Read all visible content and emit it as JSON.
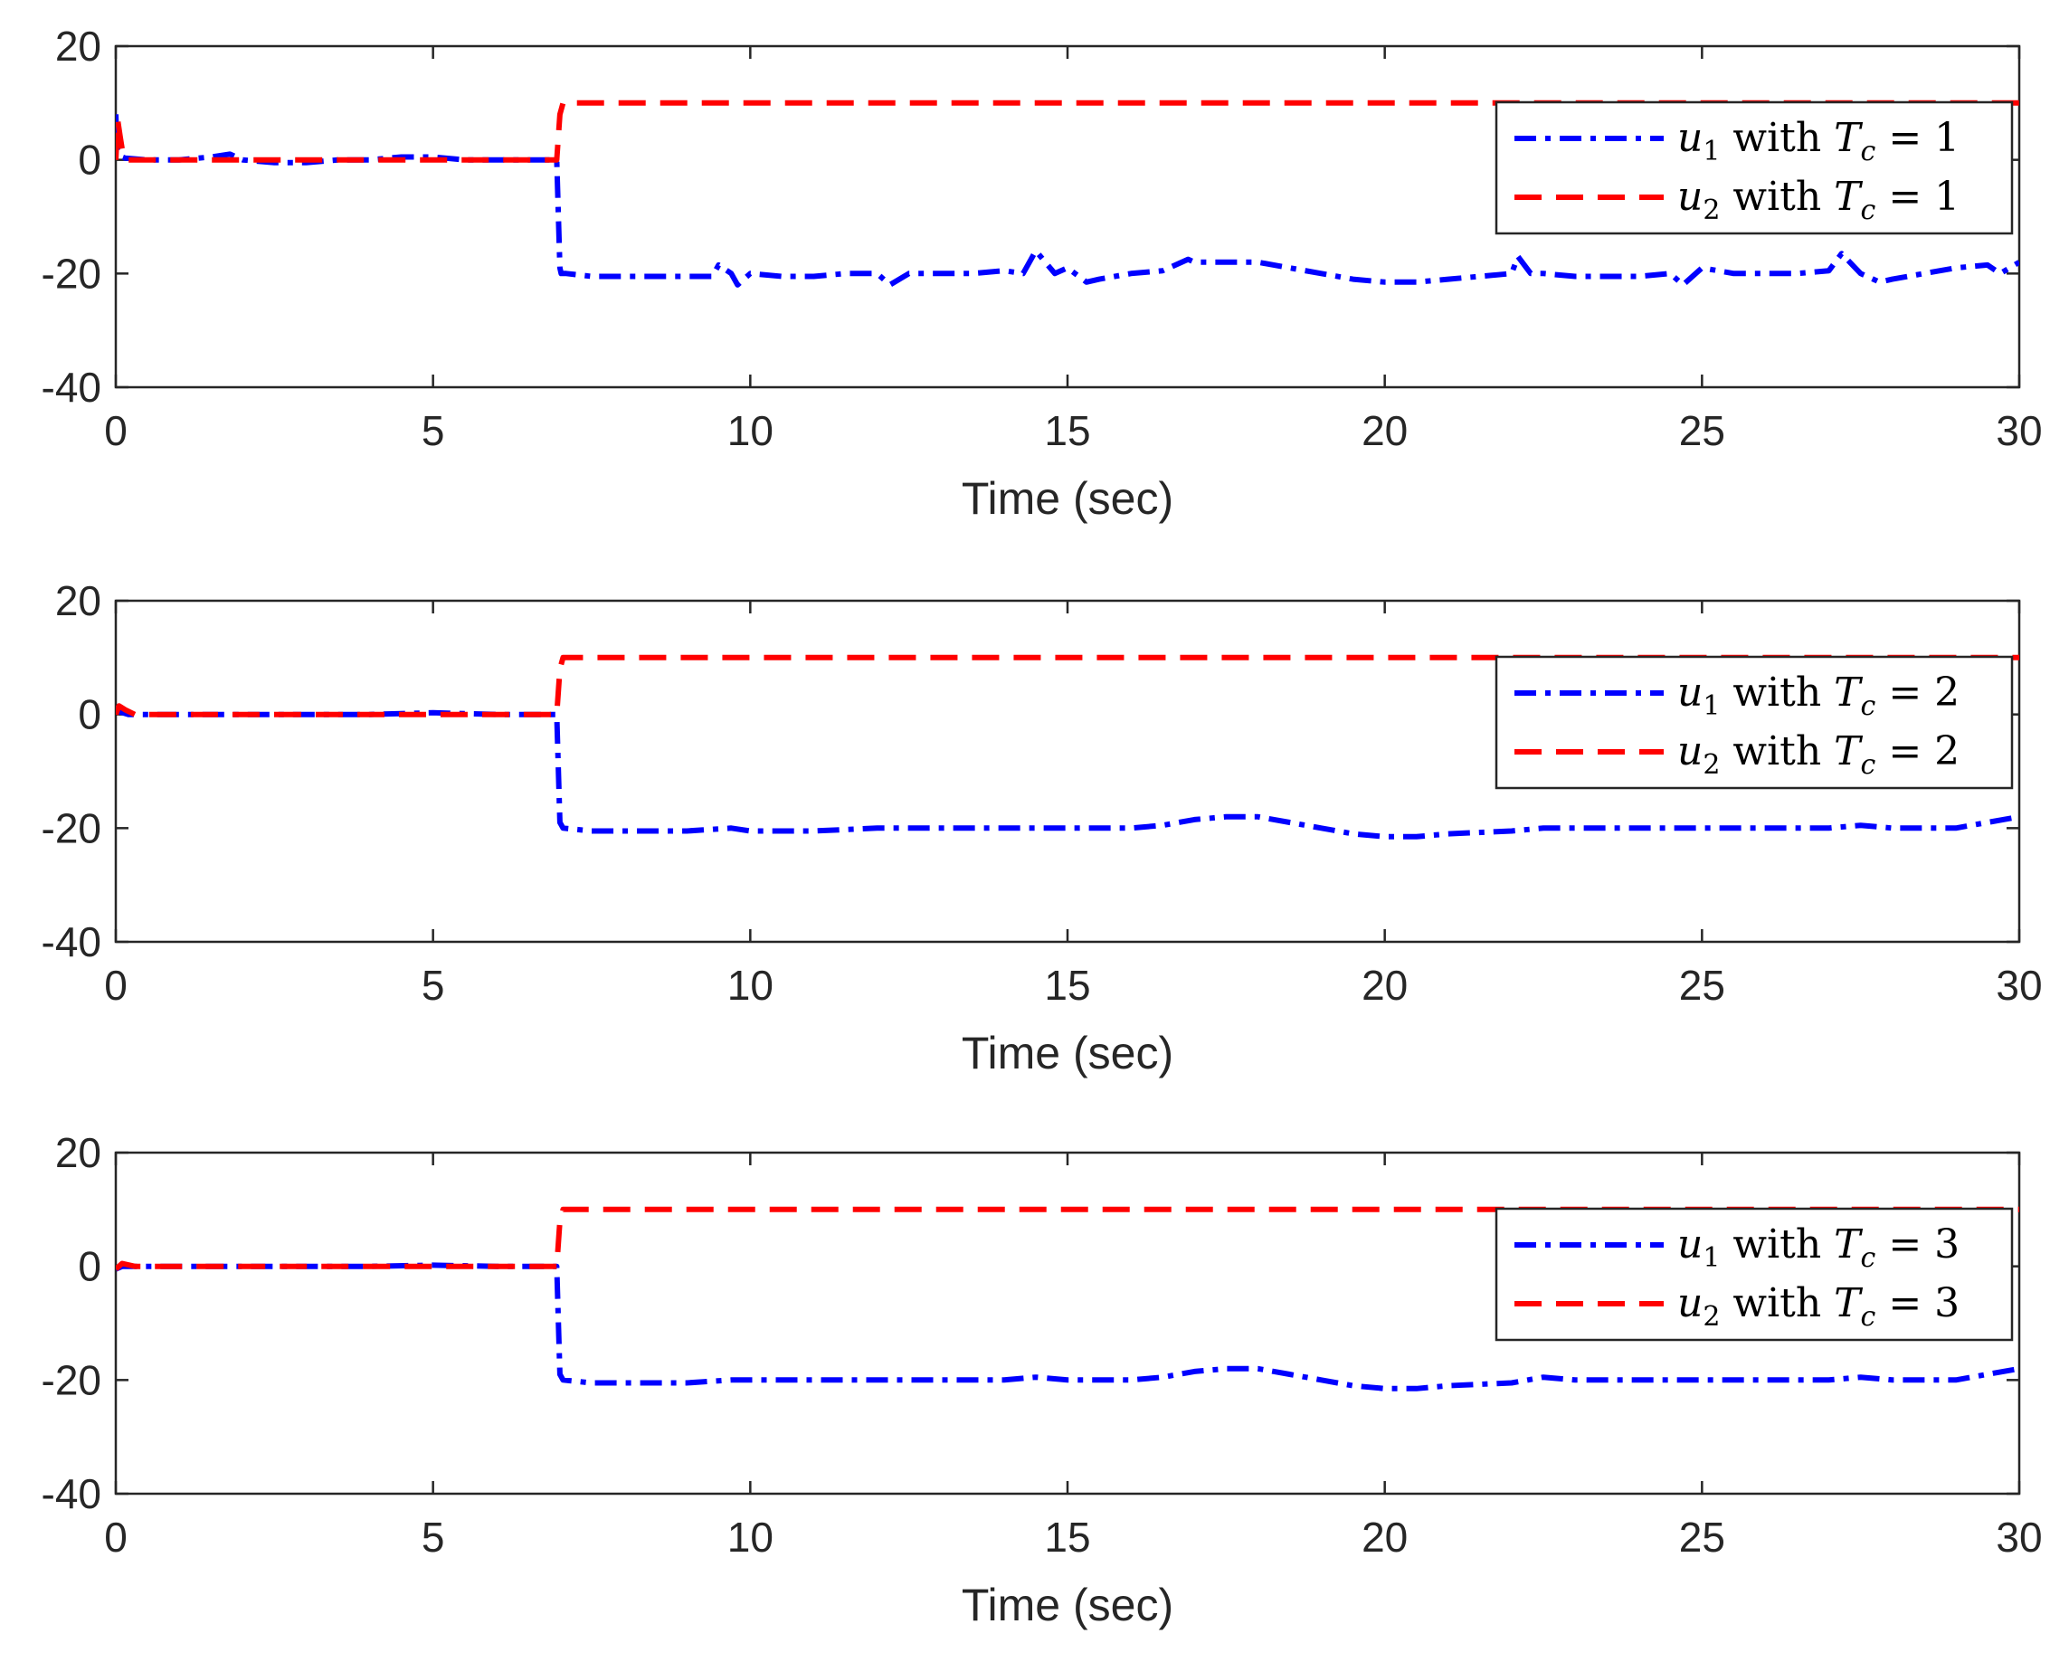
{
  "chart_data": [
    {
      "type": "line",
      "xlabel": "Time (sec)",
      "ylabel": "",
      "xlim": [
        0,
        30
      ],
      "ylim": [
        -40,
        20
      ],
      "xticks": [
        "0",
        "5",
        "10",
        "15",
        "20",
        "25",
        "30"
      ],
      "yticks": [
        "20",
        "0",
        "-20",
        "-40"
      ],
      "legend_location": "top-right",
      "legend": [
        {
          "var": "u",
          "sub": "1",
          "text": " with ",
          "param": "T",
          "param_sub": "c",
          "eq": " = 1"
        },
        {
          "var": "u",
          "sub": "2",
          "text": " with ",
          "param": "T",
          "param_sub": "c",
          "eq": " = 1"
        }
      ],
      "series": [
        {
          "name": "u1 with Tc = 1",
          "color": "#0000ff",
          "style": "dashdot",
          "x": [
            0,
            0.02,
            0.05,
            0.1,
            0.15,
            0.5,
            1,
            1.5,
            1.8,
            2,
            2.5,
            3,
            3.5,
            4,
            4.5,
            5,
            5.5,
            6,
            6.5,
            6.95,
            7.0,
            7.02,
            7.1,
            7.5,
            8,
            8.5,
            9,
            9.4,
            9.5,
            9.7,
            9.8,
            10,
            10.5,
            11,
            11.5,
            12,
            12.2,
            12.5,
            13,
            13.5,
            14,
            14.3,
            14.5,
            14.8,
            15,
            15.3,
            15.5,
            16,
            16.5,
            16.9,
            17,
            17.5,
            18,
            18.5,
            19,
            19.5,
            20,
            20.5,
            21,
            21.5,
            22,
            22.1,
            22.3,
            22.5,
            23,
            23.5,
            24,
            24.5,
            24.7,
            25,
            25.5,
            26,
            26.5,
            27,
            27.2,
            27.5,
            27.8,
            28,
            28.5,
            29,
            29.5,
            29.7,
            30
          ],
          "y": [
            8,
            2,
            1,
            0.5,
            0.3,
            0,
            0,
            0.5,
            1,
            0,
            -0.5,
            -0.5,
            0,
            0,
            0.5,
            0.5,
            0,
            0,
            0,
            0,
            -19,
            -20,
            -20,
            -20.5,
            -20.5,
            -20.5,
            -20.5,
            -20.5,
            -18.5,
            -20,
            -22,
            -20,
            -20.5,
            -20.5,
            -20,
            -20,
            -22,
            -20,
            -20,
            -20,
            -19.5,
            -20,
            -16,
            -20,
            -19,
            -21.5,
            -21,
            -20,
            -19.5,
            -17.5,
            -18,
            -18,
            -18,
            -19,
            -20,
            -21,
            -21.5,
            -21.5,
            -21,
            -20.5,
            -20,
            -17,
            -20,
            -20,
            -20.5,
            -20.5,
            -20.5,
            -20,
            -22,
            -19,
            -20,
            -20,
            -20,
            -19.5,
            -16.5,
            -20,
            -21.5,
            -21,
            -20,
            -19,
            -18.5,
            -20,
            -18
          ]
        },
        {
          "name": "u2 with Tc = 1",
          "color": "#ff0000",
          "style": "dashed",
          "x": [
            0,
            0.03,
            0.07,
            0.12,
            0.2,
            0.5,
            1,
            2,
            3,
            4,
            5,
            6,
            6.95,
            7.0,
            7.05,
            8,
            30
          ],
          "y": [
            0,
            7,
            4,
            0.5,
            0,
            0,
            0,
            0,
            0,
            0,
            0,
            0,
            0,
            8,
            10,
            10,
            10
          ]
        }
      ]
    },
    {
      "type": "line",
      "xlabel": "Time (sec)",
      "ylabel": "",
      "xlim": [
        0,
        30
      ],
      "ylim": [
        -40,
        20
      ],
      "xticks": [
        "0",
        "5",
        "10",
        "15",
        "20",
        "25",
        "30"
      ],
      "yticks": [
        "20",
        "0",
        "-20",
        "-40"
      ],
      "legend_location": "top-right",
      "legend": [
        {
          "var": "u",
          "sub": "1",
          "text": " with ",
          "param": "T",
          "param_sub": "c",
          "eq": " = 2"
        },
        {
          "var": "u",
          "sub": "2",
          "text": " with ",
          "param": "T",
          "param_sub": "c",
          "eq": " = 2"
        }
      ],
      "series": [
        {
          "name": "u1 with Tc = 2",
          "color": "#0000ff",
          "style": "dashdot",
          "x": [
            0,
            0.05,
            0.2,
            1,
            2,
            3,
            4,
            5,
            6,
            6.95,
            7.0,
            7.05,
            7.5,
            8,
            9,
            9.7,
            10,
            11,
            12,
            13,
            14,
            15,
            16,
            16.5,
            17,
            17.5,
            18,
            18.5,
            19,
            19.5,
            20,
            20.5,
            21,
            22,
            22.5,
            23,
            24,
            25,
            26,
            27,
            27.5,
            28,
            28.5,
            29,
            29.5,
            30
          ],
          "y": [
            1.5,
            0.5,
            0,
            0,
            0,
            0,
            0,
            0.3,
            0,
            0,
            -19,
            -20,
            -20.5,
            -20.5,
            -20.5,
            -20,
            -20.5,
            -20.5,
            -20,
            -20,
            -20,
            -20,
            -20,
            -19.5,
            -18.5,
            -18,
            -18,
            -19,
            -20,
            -21,
            -21.5,
            -21.5,
            -21,
            -20.5,
            -20,
            -20,
            -20,
            -20,
            -20,
            -20,
            -19.5,
            -20,
            -20,
            -20,
            -19,
            -18
          ]
        },
        {
          "name": "u2 with Tc = 2",
          "color": "#ff0000",
          "style": "dashed",
          "x": [
            0,
            0.05,
            0.15,
            0.3,
            1,
            2,
            3,
            4,
            5,
            6,
            6.95,
            7.0,
            7.05,
            8,
            30
          ],
          "y": [
            0,
            1.5,
            0.8,
            0,
            0,
            0,
            0,
            0,
            0,
            0,
            0,
            8,
            10,
            10,
            10
          ]
        }
      ]
    },
    {
      "type": "line",
      "xlabel": "Time (sec)",
      "ylabel": "",
      "xlim": [
        0,
        30
      ],
      "ylim": [
        -40,
        20
      ],
      "xticks": [
        "0",
        "5",
        "10",
        "15",
        "20",
        "25",
        "30"
      ],
      "yticks": [
        "20",
        "0",
        "-20",
        "-40"
      ],
      "legend_location": "top-right",
      "legend": [
        {
          "var": "u",
          "sub": "1",
          "text": " with ",
          "param": "T",
          "param_sub": "c",
          "eq": " = 3"
        },
        {
          "var": "u",
          "sub": "2",
          "text": " with ",
          "param": "T",
          "param_sub": "c",
          "eq": " = 3"
        }
      ],
      "series": [
        {
          "name": "u1 with Tc = 3",
          "color": "#0000ff",
          "style": "dashdot",
          "x": [
            0,
            0.1,
            0.3,
            1,
            2,
            3,
            4,
            5,
            6,
            6.95,
            7.0,
            7.05,
            7.5,
            8,
            9,
            9.7,
            10,
            11,
            12,
            13,
            14,
            14.5,
            15,
            16,
            16.5,
            17,
            17.5,
            18,
            18.5,
            19,
            19.5,
            20,
            20.5,
            21,
            22,
            22.5,
            23,
            24,
            25,
            26,
            27,
            27.5,
            28,
            28.5,
            29,
            29.5,
            30
          ],
          "y": [
            -0.5,
            0,
            0,
            0,
            0,
            0,
            0,
            0.2,
            0,
            0,
            -19,
            -20,
            -20.5,
            -20.5,
            -20.5,
            -20,
            -20,
            -20,
            -20,
            -20,
            -20,
            -19.5,
            -20,
            -20,
            -19.5,
            -18.5,
            -18,
            -18,
            -19,
            -20,
            -21,
            -21.5,
            -21.5,
            -21,
            -20.5,
            -19.5,
            -20,
            -20,
            -20,
            -20,
            -20,
            -19.5,
            -20,
            -20,
            -20,
            -19,
            -18
          ]
        },
        {
          "name": "u2 with Tc = 3",
          "color": "#ff0000",
          "style": "dashed",
          "x": [
            0,
            0.1,
            0.3,
            1,
            2,
            3,
            4,
            5,
            6,
            6.95,
            7.0,
            7.05,
            8,
            30
          ],
          "y": [
            -0.5,
            0.5,
            0,
            0,
            0,
            0,
            0,
            0,
            0,
            0,
            8,
            10,
            10,
            10
          ]
        }
      ]
    }
  ]
}
